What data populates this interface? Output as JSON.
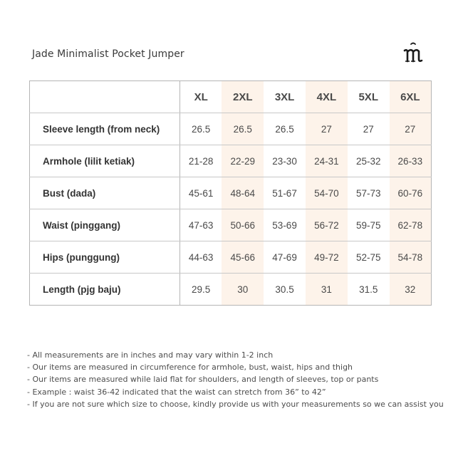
{
  "title": "Jade Minimalist Pocket Jumper",
  "logo_letter": "m",
  "colors": {
    "accent_column_bg": "#fdf3ea",
    "border": "#c8c8c8",
    "text": "#4a4a4a"
  },
  "table": {
    "corner": "",
    "sizes": [
      "XL",
      "2XL",
      "3XL",
      "4XL",
      "5XL",
      "6XL"
    ],
    "rows": [
      {
        "label": "Sleeve length (from neck)",
        "values": [
          "26.5",
          "26.5",
          "26.5",
          "27",
          "27",
          "27"
        ]
      },
      {
        "label": "Armhole (lilit ketiak)",
        "values": [
          "21-28",
          "22-29",
          "23-30",
          "24-31",
          "25-32",
          "26-33"
        ]
      },
      {
        "label": "Bust (dada)",
        "values": [
          "45-61",
          "48-64",
          "51-67",
          "54-70",
          "57-73",
          "60-76"
        ]
      },
      {
        "label": "Waist (pinggang)",
        "values": [
          "47-63",
          "50-66",
          "53-69",
          "56-72",
          "59-75",
          "62-78"
        ]
      },
      {
        "label": "Hips (punggung)",
        "values": [
          "44-63",
          "45-66",
          "47-69",
          "49-72",
          "52-75",
          "54-78"
        ]
      },
      {
        "label": "Length (pjg baju)",
        "values": [
          "29.5",
          "30",
          "30.5",
          "31",
          "31.5",
          "32"
        ]
      }
    ]
  },
  "notes": [
    "- All measurements are in inches and may vary within 1-2 inch",
    "- Our items are measured in circumference for armhole, bust, waist, hips and thigh",
    "- Our items are measured while laid flat for shoulders, and length of sleeves, top or pants",
    "- Example : waist 36-42 indicated that the waist can stretch from 36” to 42”",
    "- If you are not sure which size to choose, kindly provide us with your measurements so we can assist you"
  ]
}
